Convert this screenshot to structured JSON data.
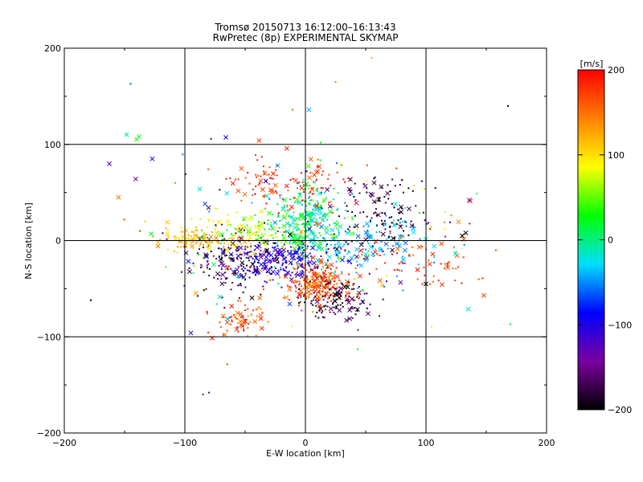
{
  "chart_data": {
    "type": "scatter",
    "title": "Tromsø 20150713 16:12:00–16:13:43",
    "subtitle": "RwPretec (8p) EXPERIMENTAL SKYMAP",
    "xlabel": "E-W location [km]",
    "ylabel": "N-S location [km]",
    "xlim": [
      -200,
      200
    ],
    "ylim": [
      -200,
      200
    ],
    "xticks": [
      "−200",
      "−100",
      "0",
      "100",
      "200"
    ],
    "yticks": [
      "−200",
      "−100",
      "0",
      "100",
      "200"
    ],
    "grid": true,
    "grid_lines_x": [
      -100,
      0,
      100
    ],
    "grid_lines_y": [
      -100,
      0,
      100
    ],
    "colorbar": {
      "label": "[m/s]",
      "range": [
        -200,
        200
      ],
      "ticks": [
        "200",
        "100",
        "0",
        "−100",
        "−200"
      ],
      "colormap": [
        "#000000",
        "#7a00a0",
        "#0000ff",
        "#00e0ff",
        "#00ff00",
        "#ffff00",
        "#ff8000",
        "#ff0000"
      ]
    },
    "marker_types": [
      "dot",
      "cross"
    ],
    "clusters": [
      {
        "cx": 0,
        "cy": 20,
        "sx": 14,
        "sy": 22,
        "n": 260,
        "vmin": -40,
        "vmax": 40
      },
      {
        "cx": 10,
        "cy": -45,
        "sx": 14,
        "sy": 12,
        "n": 240,
        "vmin": 130,
        "vmax": 200
      },
      {
        "cx": -30,
        "cy": -20,
        "sx": 28,
        "sy": 10,
        "n": 260,
        "vmin": -140,
        "vmax": -80
      },
      {
        "cx": -60,
        "cy": -25,
        "sx": 18,
        "sy": 18,
        "n": 110,
        "vmin": -210,
        "vmax": -160
      },
      {
        "cx": -85,
        "cy": 0,
        "sx": 20,
        "sy": 7,
        "n": 110,
        "vmin": 90,
        "vmax": 150
      },
      {
        "cx": -40,
        "cy": 10,
        "sx": 25,
        "sy": 10,
        "n": 120,
        "vmin": 20,
        "vmax": 100
      },
      {
        "cx": 60,
        "cy": 30,
        "sx": 18,
        "sy": 20,
        "n": 120,
        "vmin": -210,
        "vmax": -150
      },
      {
        "cx": 50,
        "cy": 0,
        "sx": 25,
        "sy": 15,
        "n": 130,
        "vmin": -60,
        "vmax": -20
      },
      {
        "cx": -20,
        "cy": 60,
        "sx": 25,
        "sy": 15,
        "n": 110,
        "vmin": 150,
        "vmax": 200
      },
      {
        "cx": 25,
        "cy": -62,
        "sx": 14,
        "sy": 10,
        "n": 110,
        "vmin": -210,
        "vmax": -150
      },
      {
        "cx": -55,
        "cy": -82,
        "sx": 10,
        "sy": 8,
        "n": 70,
        "vmin": 130,
        "vmax": 200
      },
      {
        "cx": 90,
        "cy": -25,
        "sx": 28,
        "sy": 15,
        "n": 70,
        "vmin": 150,
        "vmax": 200
      },
      {
        "cx": 0,
        "cy": 0,
        "sx": 70,
        "sy": 45,
        "n": 180,
        "vmin": -200,
        "vmax": 200
      }
    ],
    "outliers": [
      {
        "x": -140,
        "y": 105,
        "v": 40,
        "m": "cross"
      },
      {
        "x": -138,
        "y": 108,
        "v": 20,
        "m": "cross"
      },
      {
        "x": -127,
        "y": 85,
        "v": -100,
        "m": "cross"
      },
      {
        "x": -155,
        "y": 45,
        "v": 150,
        "m": "cross"
      },
      {
        "x": -128,
        "y": 7,
        "v": 20,
        "m": "cross"
      },
      {
        "x": -145,
        "y": 163,
        "v": -60,
        "m": "dot"
      },
      {
        "x": 168,
        "y": 140,
        "v": -200,
        "m": "dot"
      },
      {
        "x": 170,
        "y": -87,
        "v": 20,
        "m": "dot"
      },
      {
        "x": 148,
        "y": -57,
        "v": 170,
        "m": "cross"
      },
      {
        "x": -95,
        "y": -96,
        "v": -110,
        "m": "cross"
      },
      {
        "x": -80,
        "y": -158,
        "v": -120,
        "m": "dot"
      },
      {
        "x": -85,
        "y": -160,
        "v": -120,
        "m": "dot"
      },
      {
        "x": -178,
        "y": -62,
        "v": -200,
        "m": "dot"
      },
      {
        "x": 3,
        "y": 136,
        "v": -40,
        "m": "cross"
      },
      {
        "x": 130,
        "y": 5,
        "v": -200,
        "m": "cross"
      },
      {
        "x": 133,
        "y": 8,
        "v": -200,
        "m": "cross"
      },
      {
        "x": 158,
        "y": -10,
        "v": 170,
        "m": "dot"
      },
      {
        "x": 125,
        "y": -12,
        "v": -20,
        "m": "dot"
      },
      {
        "x": 118,
        "y": -28,
        "v": 170,
        "m": "cross"
      },
      {
        "x": 100,
        "y": -45,
        "v": -200,
        "m": "cross"
      },
      {
        "x": -108,
        "y": 60,
        "v": 30,
        "m": "dot"
      },
      {
        "x": 55,
        "y": 190,
        "v": 120,
        "m": "dot"
      },
      {
        "x": 25,
        "y": 165,
        "v": 140,
        "m": "dot"
      }
    ]
  }
}
